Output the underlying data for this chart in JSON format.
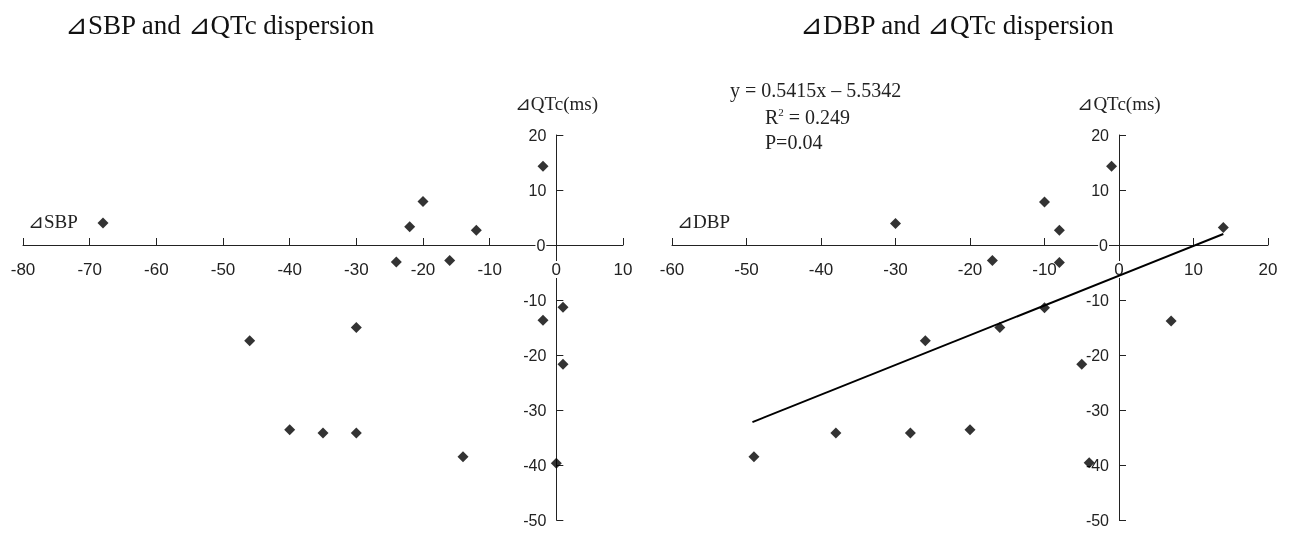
{
  "chart_data": [
    {
      "type": "scatter",
      "title": "⊿SBP and ⊿QTc dispersion",
      "xlabel": "⊿SBP",
      "ylabel": "⊿QTc(ms)",
      "xlim": [
        -80,
        10
      ],
      "xticks": [
        -80,
        -70,
        -60,
        -50,
        -40,
        -30,
        -20,
        -10,
        0,
        10
      ],
      "ylim": [
        -50,
        20
      ],
      "yticks": [
        -50,
        -40,
        -30,
        -20,
        -10,
        0,
        10,
        20
      ],
      "series": [
        {
          "color": "#000000",
          "marker": "diamond",
          "x": [
            -68,
            -2,
            -20,
            -22,
            -12,
            -24,
            -16,
            1,
            -2,
            -30,
            -46,
            1,
            -40,
            -35,
            -30,
            -14,
            0
          ],
          "values": [
            4,
            14.3,
            7.9,
            3.3,
            2.7,
            -3.1,
            -2.8,
            -11.3,
            -13.7,
            -15,
            -17.4,
            -21.7,
            -33.6,
            -34.2,
            -34.2,
            -38.5,
            -39.7
          ]
        }
      ]
    },
    {
      "type": "scatter",
      "title": "⊿DBP and ⊿QTc dispersion",
      "xlabel": "⊿DBP",
      "ylabel": "⊿QTc(ms)",
      "xlim": [
        -60,
        20
      ],
      "xticks": [
        -60,
        -50,
        -40,
        -30,
        -20,
        -10,
        0,
        10,
        20
      ],
      "ylim": [
        -50,
        20
      ],
      "yticks": [
        -50,
        -40,
        -30,
        -20,
        -10,
        0,
        10,
        20
      ],
      "annotations": [
        "y = 0.5415x – 5.5342",
        "R$^{2}$ = 0.249",
        "P=0.04"
      ],
      "series": [
        {
          "color": "#000000",
          "marker": "diamond",
          "x": [
            -30,
            -1,
            -10,
            -8,
            14,
            -17,
            -8,
            -10,
            -16,
            -26,
            7,
            -5,
            -49,
            -38,
            -28,
            -20,
            -4
          ],
          "values": [
            3.9,
            14.3,
            7.8,
            2.7,
            3.2,
            -2.8,
            -3.2,
            -11.4,
            -15,
            -17.4,
            -13.8,
            -21.7,
            -38.5,
            -34.2,
            -34.2,
            -33.6,
            -39.6
          ]
        },
        {
          "type": "line",
          "marker": "none",
          "color": "#000000",
          "x": [
            -49.2,
            14
          ],
          "values": [
            -32.2,
            2
          ]
        }
      ]
    }
  ]
}
